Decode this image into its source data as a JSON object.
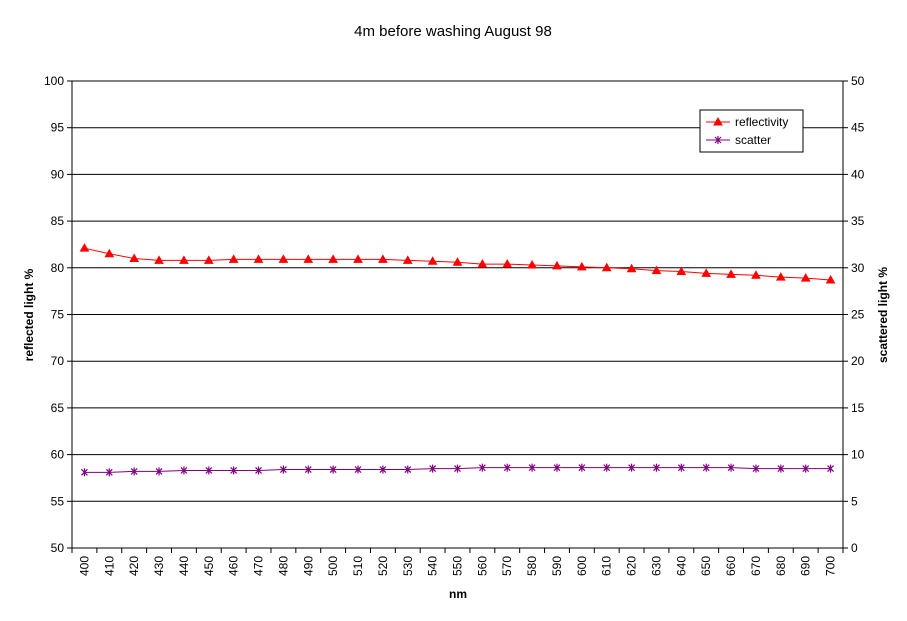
{
  "chart_data": {
    "type": "line",
    "title": "4m before washing August 98",
    "xlabel": "nm",
    "ylabel": "reflected light %",
    "y2label": "scattered light %",
    "ylim": [
      50,
      100
    ],
    "y2lim": [
      0,
      50
    ],
    "yticks": [
      "50",
      "55",
      "60",
      "65",
      "70",
      "75",
      "80",
      "85",
      "90",
      "95",
      "100"
    ],
    "y2ticks": [
      "0",
      "5",
      "10",
      "15",
      "20",
      "25",
      "30",
      "35",
      "40",
      "45",
      "50"
    ],
    "categories": [
      "400",
      "410",
      "420",
      "430",
      "440",
      "450",
      "460",
      "470",
      "480",
      "490",
      "500",
      "510",
      "520",
      "530",
      "540",
      "550",
      "560",
      "570",
      "580",
      "590",
      "600",
      "610",
      "620",
      "630",
      "640",
      "650",
      "660",
      "670",
      "680",
      "690",
      "700"
    ],
    "grid": true,
    "legend_position": "top-right",
    "series": [
      {
        "name": "reflectivity",
        "axis": "left",
        "color": "#ff0000",
        "marker": "triangle",
        "values": [
          82.1,
          81.5,
          81.0,
          80.8,
          80.8,
          80.8,
          80.9,
          80.9,
          80.9,
          80.9,
          80.9,
          80.9,
          80.9,
          80.8,
          80.7,
          80.6,
          80.4,
          80.4,
          80.3,
          80.2,
          80.1,
          80.0,
          79.9,
          79.7,
          79.6,
          79.4,
          79.3,
          79.2,
          79.0,
          78.9,
          78.7
        ]
      },
      {
        "name": "scatter",
        "axis": "right",
        "color": "#800080",
        "marker": "star",
        "values": [
          8.1,
          8.1,
          8.2,
          8.2,
          8.3,
          8.3,
          8.3,
          8.3,
          8.4,
          8.4,
          8.4,
          8.4,
          8.4,
          8.4,
          8.5,
          8.5,
          8.6,
          8.6,
          8.6,
          8.6,
          8.6,
          8.6,
          8.6,
          8.6,
          8.6,
          8.6,
          8.6,
          8.5,
          8.5,
          8.5,
          8.5
        ]
      }
    ]
  }
}
